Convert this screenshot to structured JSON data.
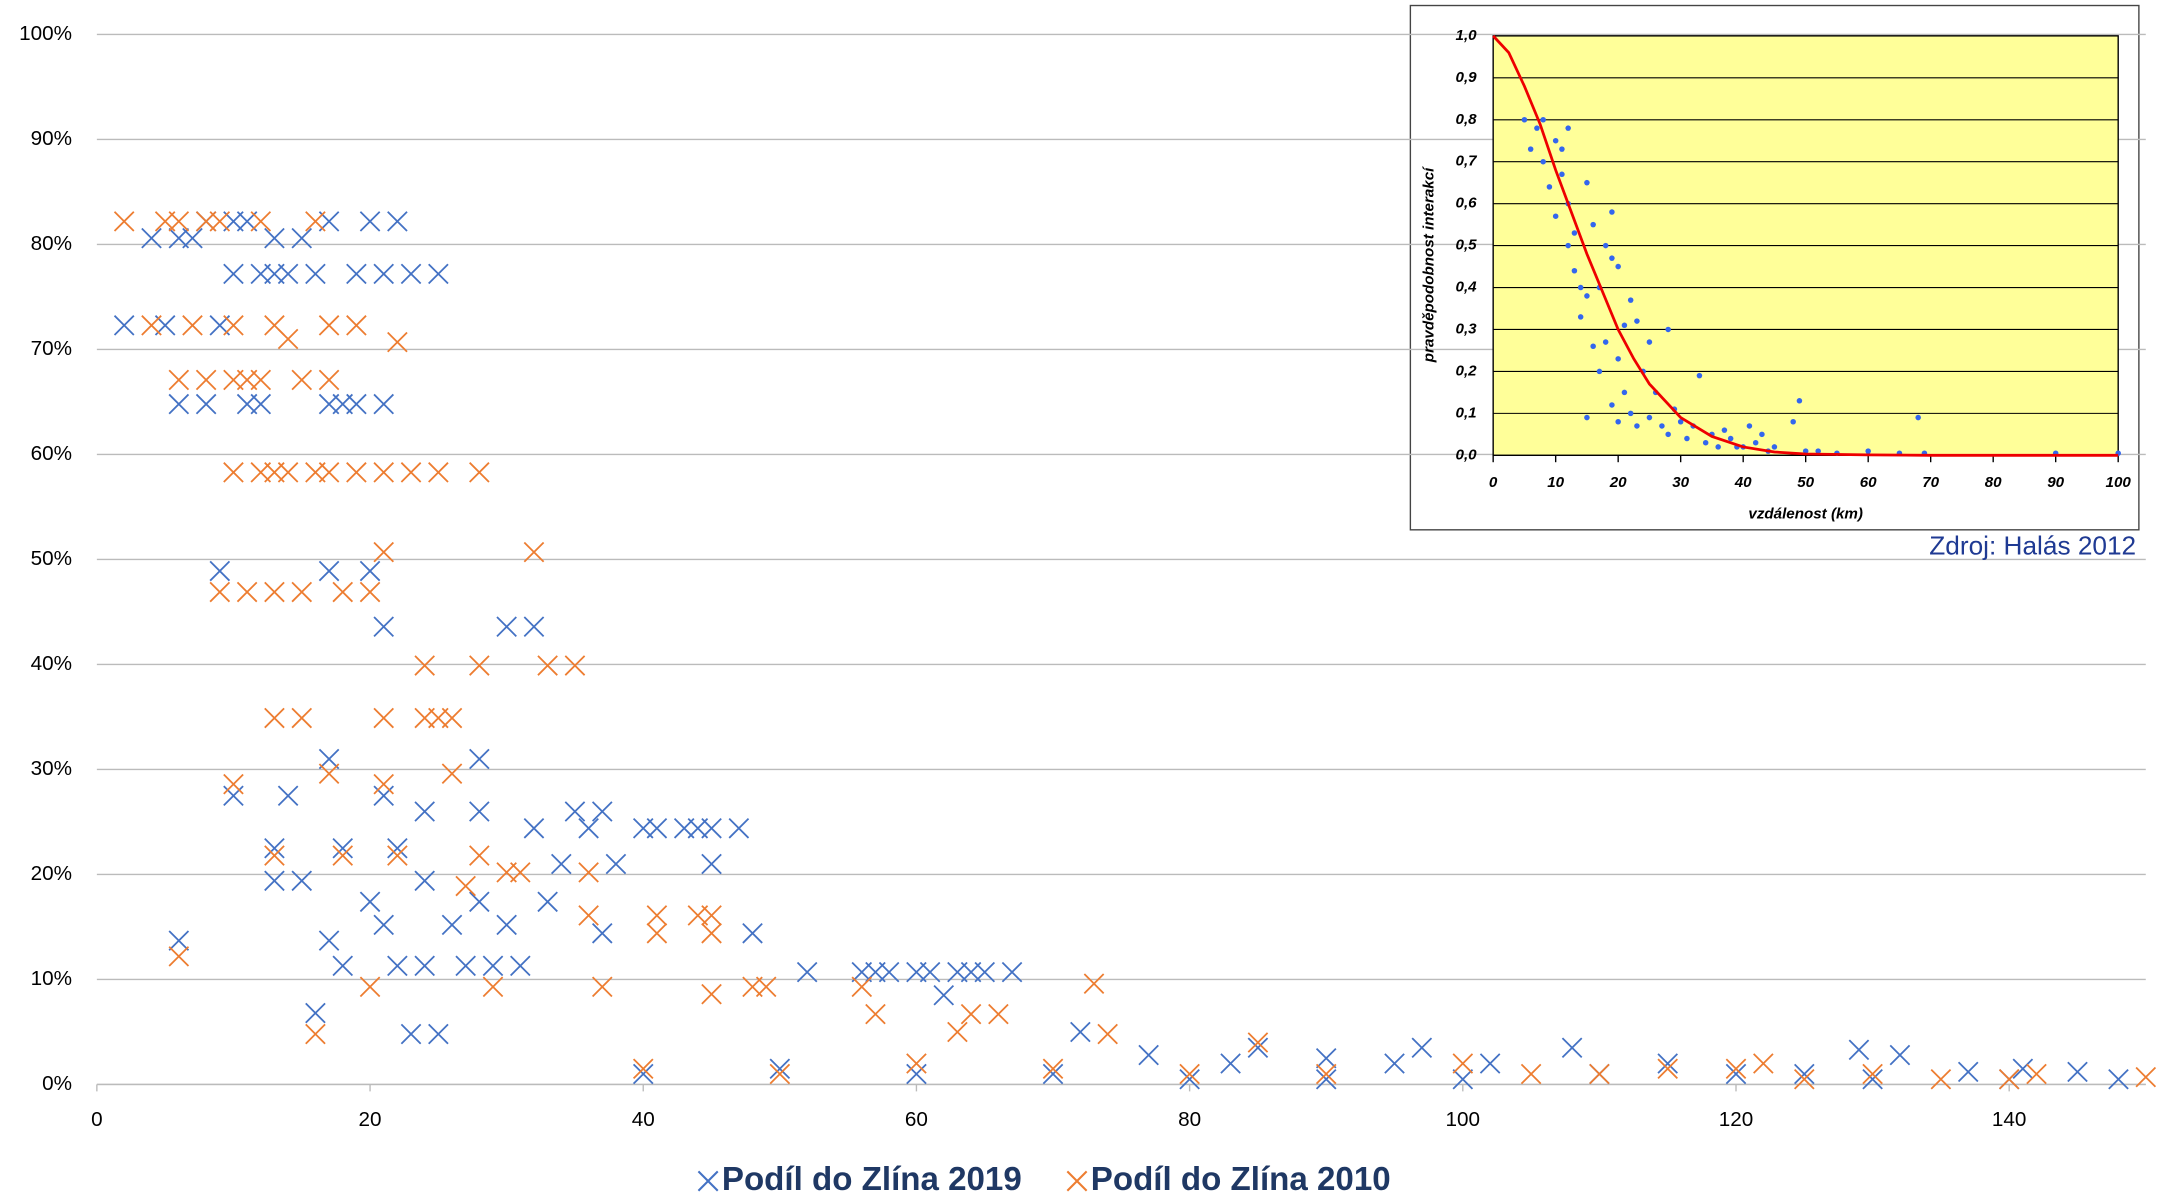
{
  "chart_data": [
    {
      "type": "scatter",
      "xlim": [
        0,
        150
      ],
      "xticks": [
        0,
        20,
        40,
        60,
        80,
        100,
        120,
        140
      ],
      "ylim": [
        0,
        100
      ],
      "yticks": [
        {
          "value": 0,
          "label": "0%"
        },
        {
          "value": 10,
          "label": "10%"
        },
        {
          "value": 20,
          "label": "20%"
        },
        {
          "value": 30,
          "label": "30%"
        },
        {
          "value": 40,
          "label": "40%"
        },
        {
          "value": 50,
          "label": "50%"
        },
        {
          "value": 60,
          "label": "60%"
        },
        {
          "value": 70,
          "label": "70%"
        },
        {
          "value": 80,
          "label": "80%"
        },
        {
          "value": 90,
          "label": "90%"
        },
        {
          "value": 100,
          "label": "100%"
        }
      ],
      "grid": true,
      "legend": "bottom",
      "series": [
        {
          "name": "Podíl do Zlína 2019",
          "color": "#4472c4",
          "x": [
            2,
            4,
            5,
            6,
            6,
            6,
            7,
            8,
            8,
            9,
            9,
            10,
            10,
            10,
            11,
            11,
            12,
            12,
            13,
            13,
            13,
            13,
            14,
            14,
            15,
            15,
            16,
            16,
            17,
            17,
            17,
            17,
            17,
            18,
            18,
            18,
            19,
            19,
            20,
            20,
            20,
            21,
            21,
            21,
            21,
            21,
            22,
            22,
            22,
            23,
            23,
            24,
            24,
            24,
            25,
            25,
            26,
            27,
            28,
            28,
            28,
            29,
            30,
            30,
            31,
            32,
            32,
            33,
            34,
            35,
            36,
            37,
            37,
            38,
            40,
            41,
            43,
            44,
            45,
            45,
            47,
            48,
            52,
            56,
            57,
            58,
            60,
            61,
            63,
            64,
            65,
            67,
            62,
            72,
            77,
            83,
            85,
            90,
            95,
            97,
            102,
            108,
            115,
            125,
            129,
            132,
            137,
            141,
            145,
            148,
            40,
            50,
            60,
            70,
            80,
            90,
            100,
            110,
            120,
            130,
            140
          ],
          "values": [
            72.3,
            80.6,
            72.3,
            80.6,
            64.8,
            13.7,
            80.6,
            82.2,
            64.8,
            72.3,
            48.9,
            82.2,
            77.2,
            27.5,
            82.2,
            64.8,
            77.2,
            64.8,
            80.6,
            77.2,
            22.5,
            19.4,
            77.2,
            27.5,
            80.6,
            19.4,
            77.2,
            6.8,
            82.2,
            64.8,
            48.9,
            31,
            13.7,
            64.8,
            22.5,
            11.3,
            77.2,
            64.8,
            82.2,
            48.9,
            17.4,
            77.2,
            64.8,
            43.6,
            27.5,
            15.2,
            82.2,
            22.5,
            11.3,
            77.2,
            4.8,
            26,
            19.4,
            11.3,
            77.2,
            4.8,
            15.2,
            11.3,
            31,
            26,
            17.4,
            11.3,
            43.6,
            15.2,
            11.3,
            43.6,
            24.4,
            17.4,
            21,
            26,
            24.4,
            26,
            14.4,
            21,
            24.4,
            24.4,
            24.4,
            24.4,
            24.4,
            21,
            24.4,
            14.4,
            10.7,
            10.7,
            10.7,
            10.7,
            10.7,
            10.7,
            10.7,
            10.7,
            10.7,
            10.7,
            8.5,
            5,
            2.8,
            2,
            3.5,
            2.5,
            2,
            3.5,
            2,
            3.5,
            2,
            1,
            3.3,
            2.8,
            1.2,
            1.5,
            1.2,
            0.5,
            1,
            1.5,
            1,
            1,
            0.5,
            0.5,
            0.5,
            1,
            1,
            0.5,
            0.5
          ]
        },
        {
          "name": "Podíl do Zlína 2010",
          "color": "#ed7d31",
          "x": [
            2,
            4,
            5,
            6,
            6,
            6,
            7,
            8,
            8,
            9,
            9,
            10,
            10,
            10,
            10,
            11,
            11,
            12,
            12,
            12,
            13,
            13,
            13,
            13,
            13,
            14,
            14,
            15,
            15,
            15,
            16,
            16,
            16,
            17,
            17,
            17,
            17,
            18,
            18,
            19,
            19,
            20,
            20,
            21,
            21,
            21,
            21,
            22,
            22,
            23,
            24,
            24,
            25,
            25,
            26,
            26,
            27,
            28,
            28,
            28,
            29,
            30,
            31,
            32,
            33,
            35,
            36,
            36,
            37,
            41,
            41,
            44,
            45,
            45,
            45,
            48,
            49,
            56,
            57,
            63,
            64,
            66,
            73,
            74,
            85,
            100,
            115,
            120,
            122,
            135,
            142,
            150,
            40,
            50,
            60,
            70,
            80,
            90,
            105,
            110,
            125,
            130,
            140
          ],
          "values": [
            82.2,
            72.3,
            82.2,
            82.2,
            67.1,
            12.2,
            72.3,
            82.2,
            67.1,
            82.2,
            46.9,
            72.3,
            67.1,
            58.3,
            28.6,
            67.1,
            46.9,
            82.2,
            67.1,
            58.3,
            72.3,
            58.3,
            46.9,
            34.9,
            21.8,
            71,
            58.3,
            46.9,
            34.9,
            67.1,
            82.2,
            58.3,
            4.8,
            72.3,
            58.3,
            67.1,
            29.6,
            46.9,
            21.8,
            72.3,
            58.3,
            46.9,
            9.3,
            58.3,
            50.7,
            34.9,
            28.6,
            70.7,
            21.8,
            58.3,
            39.9,
            34.9,
            58.3,
            34.9,
            34.9,
            29.6,
            18.9,
            58.3,
            39.9,
            21.8,
            9.3,
            20.2,
            20.2,
            50.7,
            39.9,
            39.9,
            20.2,
            16.1,
            9.3,
            16.1,
            14.4,
            16.1,
            16.1,
            14.4,
            8.6,
            9.3,
            9.3,
            9.3,
            6.7,
            5,
            6.7,
            6.7,
            9.6,
            4.8,
            4,
            2,
            1.5,
            1.5,
            2,
            0.5,
            1,
            0.7,
            1.5,
            1,
            2,
            1.5,
            1,
            1,
            1,
            1,
            0.5,
            1,
            0.5
          ]
        }
      ]
    },
    {
      "type": "scatter",
      "x_label": "vzdálenost (km)",
      "y_label": "pravděpodobnost interakcí",
      "annotation": "Zdroj: Halás 2012",
      "plot_bg": "#ffff99",
      "xlim": [
        0,
        100
      ],
      "xticks": [
        0,
        10,
        20,
        30,
        40,
        50,
        60,
        70,
        80,
        90,
        100
      ],
      "ylim": [
        0,
        1
      ],
      "yticks": [
        {
          "value": 0,
          "label": "0,0"
        },
        {
          "value": 0.1,
          "label": "0,1"
        },
        {
          "value": 0.2,
          "label": "0,2"
        },
        {
          "value": 0.3,
          "label": "0,3"
        },
        {
          "value": 0.4,
          "label": "0,4"
        },
        {
          "value": 0.5,
          "label": "0,5"
        },
        {
          "value": 0.6,
          "label": "0,6"
        },
        {
          "value": 0.7,
          "label": "0,7"
        },
        {
          "value": 0.8,
          "label": "0,8"
        },
        {
          "value": 0.9,
          "label": "0,9"
        },
        {
          "value": 1,
          "label": "1,0"
        }
      ],
      "grid": true,
      "series": [
        {
          "color": "#3366ee",
          "mode": "markers",
          "x": [
            5,
            6,
            7,
            8,
            8,
            9,
            10,
            10,
            11,
            11,
            12,
            12,
            12,
            13,
            13,
            14,
            14,
            15,
            15,
            15,
            16,
            16,
            17,
            17,
            18,
            18,
            19,
            19,
            19,
            20,
            20,
            20,
            21,
            21,
            22,
            22,
            23,
            23,
            24,
            25,
            25,
            26,
            27,
            28,
            28,
            29,
            30,
            31,
            32,
            33,
            34,
            35,
            36,
            37,
            38,
            39,
            40,
            41,
            42,
            43,
            44,
            45,
            48,
            49,
            50,
            52,
            55,
            60,
            65,
            68,
            69,
            90,
            100
          ],
          "values": [
            0.8,
            0.73,
            0.78,
            0.8,
            0.7,
            0.64,
            0.57,
            0.75,
            0.73,
            0.67,
            0.5,
            0.6,
            0.78,
            0.53,
            0.44,
            0.4,
            0.33,
            0.65,
            0.38,
            0.09,
            0.55,
            0.26,
            0.4,
            0.2,
            0.5,
            0.27,
            0.58,
            0.47,
            0.12,
            0.45,
            0.23,
            0.08,
            0.31,
            0.15,
            0.37,
            0.1,
            0.32,
            0.07,
            0.2,
            0.27,
            0.09,
            0.15,
            0.07,
            0.3,
            0.05,
            0.11,
            0.08,
            0.04,
            0.07,
            0.19,
            0.03,
            0.05,
            0.02,
            0.06,
            0.04,
            0.02,
            0.02,
            0.07,
            0.03,
            0.05,
            0.01,
            0.02,
            0.08,
            0.13,
            0.01,
            0.01,
            0.005,
            0.01,
            0.005,
            0.09,
            0.005,
            0.005,
            0.005
          ]
        },
        {
          "color": "#ee0000",
          "mode": "line",
          "x": [
            0,
            2.5,
            5,
            7.5,
            10,
            12.5,
            15,
            17.5,
            20,
            22.5,
            25,
            30,
            35,
            40,
            45,
            50,
            60,
            70,
            80,
            90,
            100
          ],
          "values": [
            1,
            0.96,
            0.88,
            0.79,
            0.68,
            0.58,
            0.48,
            0.39,
            0.3,
            0.23,
            0.17,
            0.09,
            0.045,
            0.02,
            0.008,
            0.003,
            0.001,
            0,
            0,
            0,
            0
          ]
        }
      ]
    }
  ]
}
